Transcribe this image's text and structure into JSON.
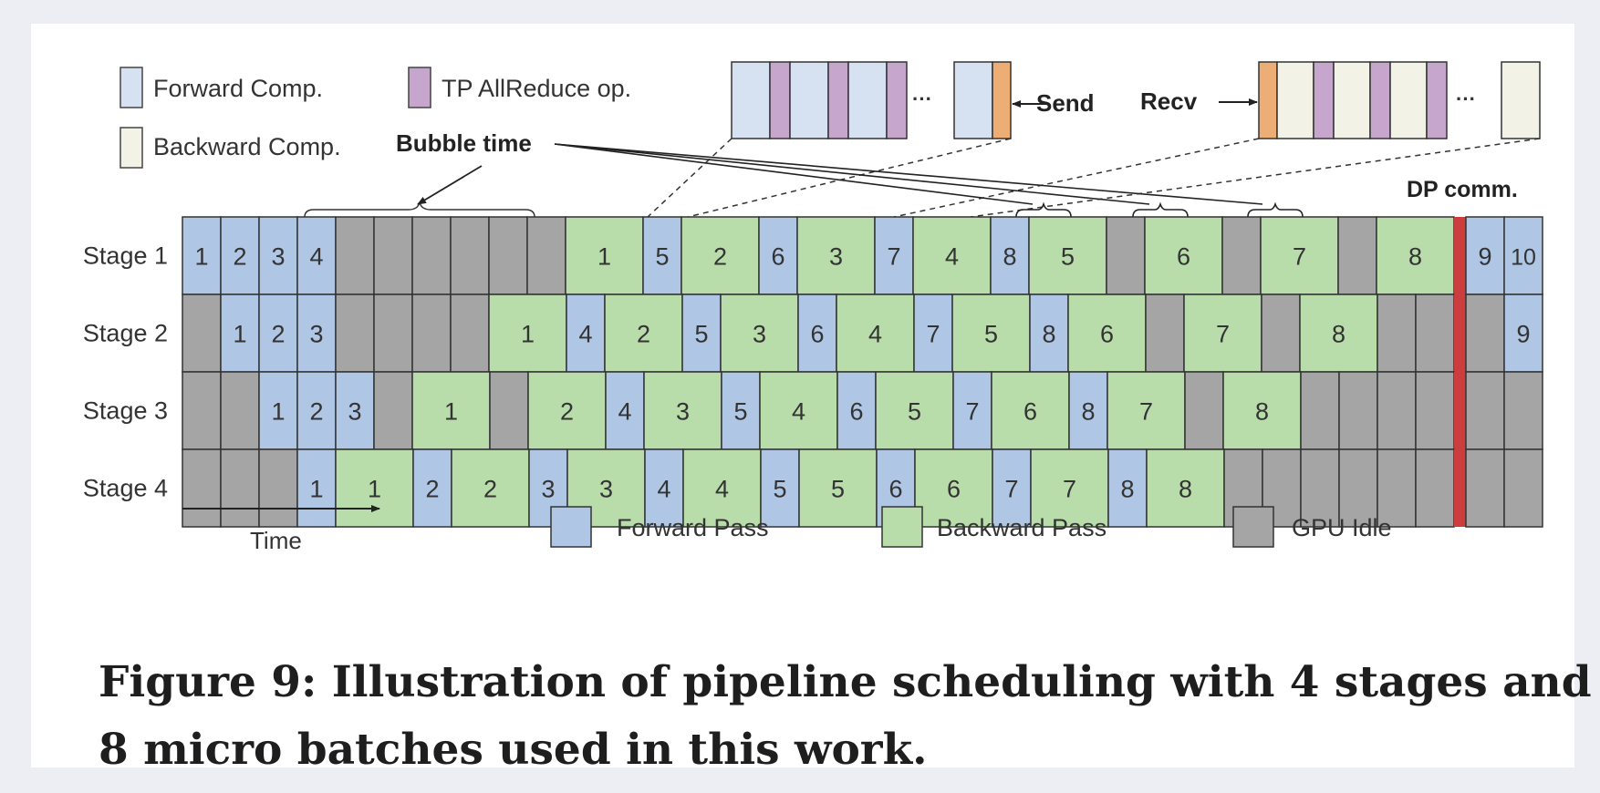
{
  "legend_top": {
    "forward_comp": "Forward Comp.",
    "tp_allreduce": "TP AllReduce op.",
    "backward_comp": "Backward Comp."
  },
  "annotations": {
    "bubble_time": "Bubble time",
    "send": "Send",
    "recv": "Recv",
    "dp_comm": "DP comm.",
    "ellipsis": "···",
    "time": "Time"
  },
  "legend_bottom": {
    "forward_pass": "Forward Pass",
    "backward_pass": "Backward Pass",
    "gpu_idle": "GPU Idle"
  },
  "colors": {
    "forward": "#afc6e5",
    "backward": "#b8dcaa",
    "idle": "#a5a5a5",
    "allreduce": "#c6a6cc",
    "comm_send": "#ecae74",
    "backward_comp": "#f2f3e6",
    "forward_comp": "#d6e2f1",
    "dp_comm": "#cc3d3d"
  },
  "timeline": {
    "rows": [
      {
        "label": "Stage 1",
        "cells": [
          [
            "F",
            "1"
          ],
          [
            "F",
            "2"
          ],
          [
            "F",
            "3"
          ],
          [
            "F",
            "4"
          ],
          [
            "I",
            ""
          ],
          [
            "I",
            ""
          ],
          [
            "I",
            ""
          ],
          [
            "I",
            ""
          ],
          [
            "I",
            ""
          ],
          [
            "I",
            ""
          ],
          [
            "B",
            "1"
          ],
          [
            "F",
            "5"
          ],
          [
            "B",
            "2"
          ],
          [
            "F",
            "6"
          ],
          [
            "B",
            "3"
          ],
          [
            "F",
            "7"
          ],
          [
            "B",
            "4"
          ],
          [
            "F",
            "8"
          ],
          [
            "B",
            "5"
          ],
          [
            "I",
            ""
          ],
          [
            "B",
            "6"
          ],
          [
            "I",
            ""
          ],
          [
            "B",
            "7"
          ],
          [
            "I",
            ""
          ],
          [
            "B",
            "8"
          ],
          [
            "D",
            ""
          ],
          [
            "F",
            "9"
          ],
          [
            "F",
            "10"
          ]
        ]
      },
      {
        "label": "Stage 2",
        "cells": [
          [
            "I",
            ""
          ],
          [
            "F",
            "1"
          ],
          [
            "F",
            "2"
          ],
          [
            "F",
            "3"
          ],
          [
            "I",
            ""
          ],
          [
            "I",
            ""
          ],
          [
            "I",
            ""
          ],
          [
            "I",
            ""
          ],
          [
            "B",
            "1"
          ],
          [
            "F",
            "4"
          ],
          [
            "B",
            "2"
          ],
          [
            "F",
            "5"
          ],
          [
            "B",
            "3"
          ],
          [
            "F",
            "6"
          ],
          [
            "B",
            "4"
          ],
          [
            "F",
            "7"
          ],
          [
            "B",
            "5"
          ],
          [
            "F",
            "8"
          ],
          [
            "B",
            "6"
          ],
          [
            "I",
            ""
          ],
          [
            "B",
            "7"
          ],
          [
            "I",
            ""
          ],
          [
            "B",
            "8"
          ],
          [
            "I",
            ""
          ],
          [
            "I",
            ""
          ],
          [
            "D",
            ""
          ],
          [
            "I",
            ""
          ],
          [
            "F",
            "9"
          ]
        ]
      },
      {
        "label": "Stage 3",
        "cells": [
          [
            "I",
            ""
          ],
          [
            "I",
            ""
          ],
          [
            "F",
            "1"
          ],
          [
            "F",
            "2"
          ],
          [
            "F",
            "3"
          ],
          [
            "I",
            ""
          ],
          [
            "B",
            "1"
          ],
          [
            "I",
            ""
          ],
          [
            "B",
            "2"
          ],
          [
            "F",
            "4"
          ],
          [
            "B",
            "3"
          ],
          [
            "F",
            "5"
          ],
          [
            "B",
            "4"
          ],
          [
            "F",
            "6"
          ],
          [
            "B",
            "5"
          ],
          [
            "F",
            "7"
          ],
          [
            "B",
            "6"
          ],
          [
            "F",
            "8"
          ],
          [
            "B",
            "7"
          ],
          [
            "I",
            ""
          ],
          [
            "B",
            "8"
          ],
          [
            "I",
            ""
          ],
          [
            "I",
            ""
          ],
          [
            "I",
            ""
          ],
          [
            "I",
            ""
          ],
          [
            "D",
            ""
          ],
          [
            "I",
            ""
          ],
          [
            "I",
            ""
          ]
        ]
      },
      {
        "label": "Stage 4",
        "cells": [
          [
            "I",
            ""
          ],
          [
            "I",
            ""
          ],
          [
            "I",
            ""
          ],
          [
            "F",
            "1"
          ],
          [
            "B",
            "1"
          ],
          [
            "F",
            "2"
          ],
          [
            "B",
            "2"
          ],
          [
            "F",
            "3"
          ],
          [
            "B",
            "3"
          ],
          [
            "F",
            "4"
          ],
          [
            "B",
            "4"
          ],
          [
            "F",
            "5"
          ],
          [
            "B",
            "5"
          ],
          [
            "F",
            "6"
          ],
          [
            "B",
            "6"
          ],
          [
            "F",
            "7"
          ],
          [
            "B",
            "7"
          ],
          [
            "F",
            "8"
          ],
          [
            "B",
            "8"
          ],
          [
            "I",
            ""
          ],
          [
            "I",
            ""
          ],
          [
            "I",
            ""
          ],
          [
            "I",
            ""
          ],
          [
            "I",
            ""
          ],
          [
            "I",
            ""
          ],
          [
            "D",
            ""
          ],
          [
            "I",
            ""
          ],
          [
            "I",
            ""
          ]
        ]
      }
    ]
  },
  "caption": {
    "line1": "Figure 9: Illustration of pipeline scheduling with 4 stages and",
    "line2": "8 micro batches used in this work."
  }
}
